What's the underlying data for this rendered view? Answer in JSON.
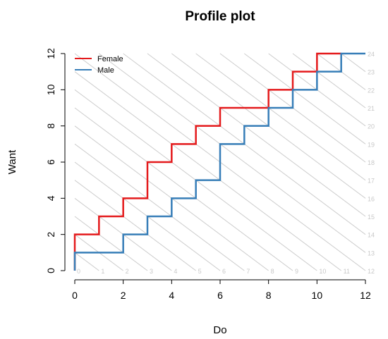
{
  "chart_data": {
    "type": "line",
    "title": "Profile plot",
    "xlabel": "Do",
    "ylabel": "Want",
    "xlim": [
      0,
      12
    ],
    "ylim": [
      0,
      12
    ],
    "x_ticks": [
      "0",
      "2",
      "4",
      "6",
      "8",
      "10",
      "12"
    ],
    "y_ticks": [
      "0",
      "2",
      "4",
      "6",
      "8",
      "10",
      "12"
    ],
    "iso_lines": {
      "color": "#cccccc",
      "sums": [
        "0",
        "1",
        "2",
        "3",
        "4",
        "5",
        "6",
        "7",
        "8",
        "9",
        "10",
        "11",
        "12",
        "13",
        "14",
        "15",
        "16",
        "17",
        "18",
        "19",
        "20",
        "21",
        "22",
        "23",
        "24"
      ]
    },
    "legend": {
      "position": "top-left"
    },
    "series": [
      {
        "name": "Female",
        "color": "#e41a1c",
        "points": [
          [
            0,
            0
          ],
          [
            0,
            2
          ],
          [
            1,
            2
          ],
          [
            1,
            3
          ],
          [
            2,
            3
          ],
          [
            2,
            4
          ],
          [
            3,
            4
          ],
          [
            3,
            6
          ],
          [
            4,
            6
          ],
          [
            4,
            7
          ],
          [
            5,
            7
          ],
          [
            5,
            8
          ],
          [
            6,
            8
          ],
          [
            6,
            9
          ],
          [
            8,
            9
          ],
          [
            8,
            10
          ],
          [
            9,
            10
          ],
          [
            9,
            11
          ],
          [
            10,
            11
          ],
          [
            10,
            12
          ],
          [
            11,
            12
          ]
        ]
      },
      {
        "name": "Male",
        "color": "#377eb8",
        "points": [
          [
            0,
            0
          ],
          [
            0,
            1
          ],
          [
            2,
            1
          ],
          [
            2,
            2
          ],
          [
            3,
            2
          ],
          [
            3,
            3
          ],
          [
            4,
            3
          ],
          [
            4,
            4
          ],
          [
            5,
            4
          ],
          [
            5,
            5
          ],
          [
            6,
            5
          ],
          [
            6,
            7
          ],
          [
            7,
            7
          ],
          [
            7,
            8
          ],
          [
            8,
            8
          ],
          [
            8,
            9
          ],
          [
            9,
            9
          ],
          [
            9,
            10
          ],
          [
            10,
            10
          ],
          [
            10,
            11
          ],
          [
            11,
            11
          ],
          [
            11,
            12
          ],
          [
            12,
            12
          ]
        ]
      }
    ]
  }
}
